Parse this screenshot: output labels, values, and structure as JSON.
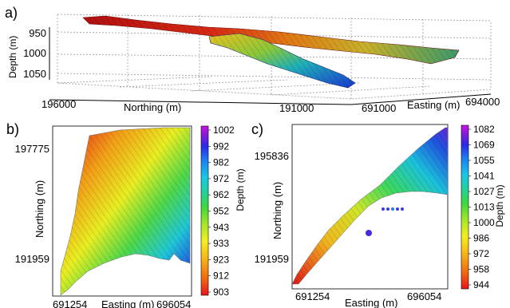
{
  "chart_data": [
    {
      "panel": "a)",
      "type": "3d-surface",
      "zlabel": "Depth (m)",
      "z_ticks": [
        "950",
        "1000",
        "1050"
      ],
      "ylabel": "Northing (m)",
      "y_ticks": [
        "196000",
        "191000"
      ],
      "xlabel": "Easting (m)",
      "x_ticks": [
        "691000",
        "694000"
      ],
      "surfaces": [
        {
          "color_top": "#c81414",
          "color_bottom": "#2c8a3a",
          "depth_range": [
            903,
            1002
          ]
        },
        {
          "color_top": "#e8c020",
          "color_bottom": "#1838d0",
          "depth_range": [
            944,
            1082
          ]
        }
      ]
    },
    {
      "panel": "b)",
      "type": "heatmap",
      "ylabel": "Northing (m)",
      "y_ticks": [
        "197775",
        "191959"
      ],
      "xlabel": "Easting (m)",
      "x_ticks": [
        "691254",
        "696054"
      ],
      "colorbar_label": "Depth (m)",
      "colorbar_ticks": [
        "1002",
        "992",
        "982",
        "972",
        "962",
        "952",
        "943",
        "933",
        "923",
        "912",
        "903"
      ],
      "value_range": [
        903,
        1002
      ]
    },
    {
      "panel": "c)",
      "type": "heatmap",
      "ylabel": "Northing (m)",
      "y_ticks": [
        "195836",
        "191959"
      ],
      "xlabel": "Easting (m)",
      "x_ticks": [
        "691254",
        "696054"
      ],
      "colorbar_label": "Depth (m)",
      "colorbar_ticks": [
        "1082",
        "1069",
        "1055",
        "1041",
        "1027",
        "1013",
        "1000",
        "986",
        "972",
        "958",
        "944"
      ],
      "value_range": [
        944,
        1082
      ]
    }
  ],
  "colors": {
    "colormap": [
      "#e8141c",
      "#f06a10",
      "#f7b818",
      "#f4ee20",
      "#a6e62a",
      "#3fd83c",
      "#1fd0a8",
      "#19c6e8",
      "#1c7ef0",
      "#2a2ae8",
      "#8a1ad8",
      "#c814e4"
    ]
  }
}
